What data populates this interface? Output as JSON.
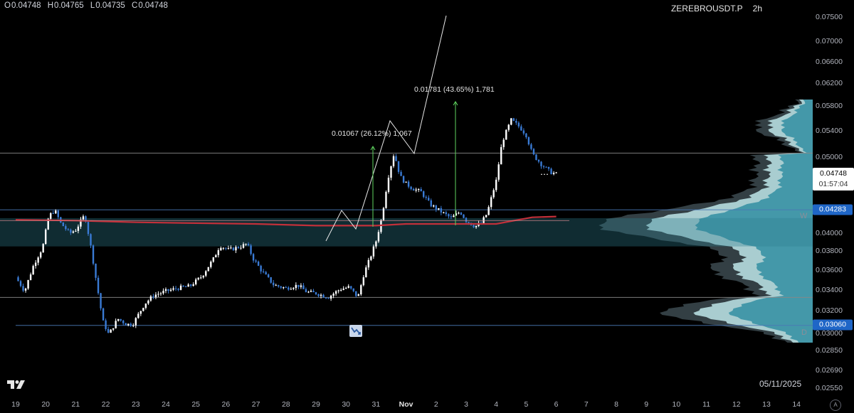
{
  "ohlc": {
    "o_label": "O",
    "o": "0.04748",
    "h_label": "H",
    "h": "0.04765",
    "l_label": "L",
    "l": "0.04735",
    "c_label": "C",
    "c": "0.04748"
  },
  "symbol": {
    "name": "ZEREBROUSDT.P",
    "interval": "2h"
  },
  "price_axis": {
    "ticks": [
      "0.07500",
      "0.07000",
      "0.06600",
      "0.06200",
      "0.05800",
      "0.05400",
      "0.05000",
      "0.04000",
      "0.03800",
      "0.03600",
      "0.03400",
      "0.03200",
      "0.03000",
      "0.02850",
      "0.02690",
      "0.02550"
    ],
    "current_price": "0.04748",
    "countdown": "01:57:04",
    "level_w": "0.04283",
    "level_d": "0.03060"
  },
  "time_axis": {
    "ticks": [
      "19",
      "20",
      "21",
      "22",
      "23",
      "24",
      "25",
      "26",
      "27",
      "28",
      "29",
      "30",
      "31",
      "Nov",
      "2",
      "3",
      "4",
      "5",
      "6",
      "7",
      "8",
      "9",
      "10",
      "11",
      "12",
      "13",
      "14"
    ]
  },
  "date_stamp": "05/11/2025",
  "side_labels": {
    "w": "W",
    "d": "D"
  },
  "measurements": [
    {
      "text": "0.01067 (26.12%) 1,067"
    },
    {
      "text": "0.01781 (43.65%) 1,781"
    }
  ],
  "auto_button": "A",
  "colors": {
    "background": "#000000",
    "up": "#ffffff",
    "down": "#3a7bd5",
    "ma": "#c2303a",
    "profile_light": "#b6dde0",
    "profile_teal": "#3e95a7",
    "profile_dark": "#3c4a50",
    "measure_arrow": "#5fd35f",
    "current_price_bg": "#ffffff",
    "level_bg": "#1f66c7"
  },
  "chart_data": {
    "type": "candlestick",
    "symbol": "ZEREBROUSDT.P",
    "interval": "2h",
    "x_ticks": [
      "19",
      "20",
      "21",
      "22",
      "23",
      "24",
      "25",
      "26",
      "27",
      "28",
      "29",
      "30",
      "31",
      "Nov",
      "2",
      "3",
      "4",
      "5",
      "6",
      "7",
      "8",
      "9",
      "10",
      "11",
      "12",
      "13",
      "14"
    ],
    "ylim": [
      0.0255,
      0.075
    ],
    "scale": "log",
    "close_path": [
      [
        19.0,
        0.0352
      ],
      [
        19.3,
        0.0338
      ],
      [
        19.6,
        0.0365
      ],
      [
        19.9,
        0.0384
      ],
      [
        20.1,
        0.042
      ],
      [
        20.3,
        0.0428
      ],
      [
        20.5,
        0.0412
      ],
      [
        20.8,
        0.04
      ],
      [
        21.0,
        0.0404
      ],
      [
        21.3,
        0.0422
      ],
      [
        21.5,
        0.0385
      ],
      [
        21.7,
        0.0345
      ],
      [
        21.9,
        0.031
      ],
      [
        22.1,
        0.0298
      ],
      [
        22.4,
        0.0312
      ],
      [
        22.7,
        0.0307
      ],
      [
        22.9,
        0.0307
      ],
      [
        23.3,
        0.0326
      ],
      [
        23.6,
        0.0334
      ],
      [
        24.0,
        0.0338
      ],
      [
        24.4,
        0.0341
      ],
      [
        24.8,
        0.0343
      ],
      [
        25.2,
        0.0353
      ],
      [
        25.6,
        0.0372
      ],
      [
        25.8,
        0.0386
      ],
      [
        26.1,
        0.0381
      ],
      [
        26.5,
        0.0385
      ],
      [
        26.7,
        0.0388
      ],
      [
        26.9,
        0.0372
      ],
      [
        27.2,
        0.0358
      ],
      [
        27.6,
        0.0344
      ],
      [
        28.0,
        0.0341
      ],
      [
        28.4,
        0.0344
      ],
      [
        28.7,
        0.0337
      ],
      [
        29.0,
        0.0336
      ],
      [
        29.4,
        0.0332
      ],
      [
        29.8,
        0.034
      ],
      [
        30.1,
        0.0342
      ],
      [
        30.4,
        0.0332
      ],
      [
        30.6,
        0.0356
      ],
      [
        30.8,
        0.0372
      ],
      [
        31.0,
        0.0391
      ],
      [
        31.2,
        0.042
      ],
      [
        31.4,
        0.047
      ],
      [
        31.6,
        0.0505
      ],
      [
        31.8,
        0.0472
      ],
      [
        32.0,
        0.0462
      ],
      [
        32.2,
        0.0456
      ],
      [
        32.5,
        0.0451
      ],
      [
        32.8,
        0.0435
      ],
      [
        33.2,
        0.0425
      ],
      [
        33.5,
        0.0418
      ],
      [
        33.8,
        0.0426
      ],
      [
        34.0,
        0.0415
      ],
      [
        34.3,
        0.0408
      ],
      [
        34.5,
        0.0412
      ],
      [
        34.7,
        0.0424
      ],
      [
        35.0,
        0.0466
      ],
      [
        35.2,
        0.0522
      ],
      [
        35.5,
        0.0556
      ],
      [
        35.8,
        0.0544
      ],
      [
        36.0,
        0.0532
      ],
      [
        36.2,
        0.0504
      ],
      [
        36.5,
        0.0489
      ],
      [
        36.8,
        0.0478
      ],
      [
        37.0,
        0.0475
      ]
    ],
    "moving_average": [
      [
        19.0,
        0.0416
      ],
      [
        21.0,
        0.0415
      ],
      [
        23.0,
        0.0413
      ],
      [
        25.0,
        0.0412
      ],
      [
        27.0,
        0.0411
      ],
      [
        29.0,
        0.0409
      ],
      [
        31.0,
        0.0409
      ],
      [
        32.0,
        0.0411
      ],
      [
        34.0,
        0.0411
      ],
      [
        35.0,
        0.0411
      ],
      [
        35.6,
        0.0415
      ],
      [
        36.2,
        0.0419
      ],
      [
        37.0,
        0.042
      ]
    ],
    "horizontal_levels": [
      {
        "label": "W",
        "price": 0.04283
      },
      {
        "label": "D",
        "price": 0.0306
      },
      {
        "price": 0.0505
      },
      {
        "price": 0.0332
      }
    ],
    "value_area": [
      0.0385,
      0.0418
    ],
    "annotations": [
      {
        "text": "0.01067 (26.12%) 1,067",
        "from": 0.0409,
        "to": 0.0516
      },
      {
        "text": "0.01781 (43.65%) 1,781",
        "from": 0.0409,
        "to": 0.0587
      }
    ],
    "current_price": 0.04748,
    "grid": false
  }
}
